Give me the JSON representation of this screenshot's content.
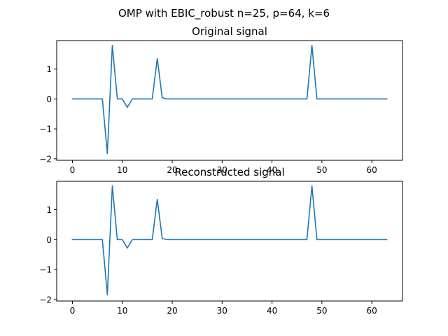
{
  "figure": {
    "suptitle": "OMP with EBIC_robust n=25, p=64, k=6"
  },
  "colors": {
    "series": "#1f77b4",
    "background": "#ffffff",
    "axes": "#000000"
  },
  "chart_data": [
    {
      "type": "line",
      "title": "Original signal",
      "xlabel": "",
      "ylabel": "",
      "xlim": [
        -3.15,
        66.15
      ],
      "ylim": [
        -2.05,
        1.95
      ],
      "xticks": [
        0,
        10,
        20,
        30,
        40,
        50,
        60
      ],
      "yticks": [
        -2,
        -1,
        0,
        1
      ],
      "ytick_labels": [
        "−2",
        "−1",
        "0",
        "1"
      ],
      "grid": false,
      "legend": "none",
      "series": [
        {
          "x": [
            0,
            1,
            2,
            3,
            4,
            5,
            6,
            7,
            8,
            9,
            10,
            11,
            12,
            13,
            14,
            15,
            16,
            17,
            18,
            19,
            20,
            21,
            22,
            23,
            24,
            25,
            26,
            27,
            28,
            29,
            30,
            31,
            32,
            33,
            34,
            35,
            36,
            37,
            38,
            39,
            40,
            41,
            42,
            43,
            44,
            45,
            46,
            47,
            48,
            49,
            50,
            51,
            52,
            53,
            54,
            55,
            56,
            57,
            58,
            59,
            60,
            61,
            62,
            63
          ],
          "values": [
            0,
            0,
            0,
            0,
            0,
            0,
            0,
            -1.83,
            1.79,
            0,
            0,
            -0.28,
            0,
            0,
            0,
            0,
            0,
            1.35,
            0.04,
            0,
            0,
            0,
            0,
            0,
            0,
            0,
            0,
            0,
            0,
            0,
            0,
            0,
            0,
            0,
            0,
            0,
            0,
            0,
            0,
            0,
            0,
            0,
            0,
            0,
            0,
            0,
            0,
            0,
            1.79,
            0,
            0,
            0,
            0,
            0,
            0,
            0,
            0,
            0,
            0,
            0,
            0,
            0,
            0,
            0
          ]
        }
      ]
    },
    {
      "type": "line",
      "title": "Reconstructed signal",
      "xlabel": "",
      "ylabel": "",
      "xlim": [
        -3.15,
        66.15
      ],
      "ylim": [
        -2.05,
        1.95
      ],
      "xticks": [
        0,
        10,
        20,
        30,
        40,
        50,
        60
      ],
      "yticks": [
        -2,
        -1,
        0,
        1
      ],
      "ytick_labels": [
        "−2",
        "−1",
        "0",
        "1"
      ],
      "grid": false,
      "legend": "none",
      "series": [
        {
          "x": [
            0,
            1,
            2,
            3,
            4,
            5,
            6,
            7,
            8,
            9,
            10,
            11,
            12,
            13,
            14,
            15,
            16,
            17,
            18,
            19,
            20,
            21,
            22,
            23,
            24,
            25,
            26,
            27,
            28,
            29,
            30,
            31,
            32,
            33,
            34,
            35,
            36,
            37,
            38,
            39,
            40,
            41,
            42,
            43,
            44,
            45,
            46,
            47,
            48,
            49,
            50,
            51,
            52,
            53,
            54,
            55,
            56,
            57,
            58,
            59,
            60,
            61,
            62,
            63
          ],
          "values": [
            0,
            0,
            0,
            0,
            0,
            0,
            0,
            -1.84,
            1.8,
            0,
            0,
            -0.28,
            0,
            0,
            0,
            0,
            0,
            1.35,
            0.04,
            0,
            0,
            0,
            0,
            0,
            0,
            0,
            0,
            0,
            0,
            0,
            0,
            0,
            0,
            0,
            0,
            0,
            0,
            0,
            0,
            0,
            0,
            0,
            0,
            0,
            0,
            0,
            0,
            0,
            1.8,
            0,
            0,
            0,
            0,
            0,
            0,
            0,
            0,
            0,
            0,
            0,
            0,
            0,
            0,
            0
          ]
        }
      ]
    }
  ]
}
